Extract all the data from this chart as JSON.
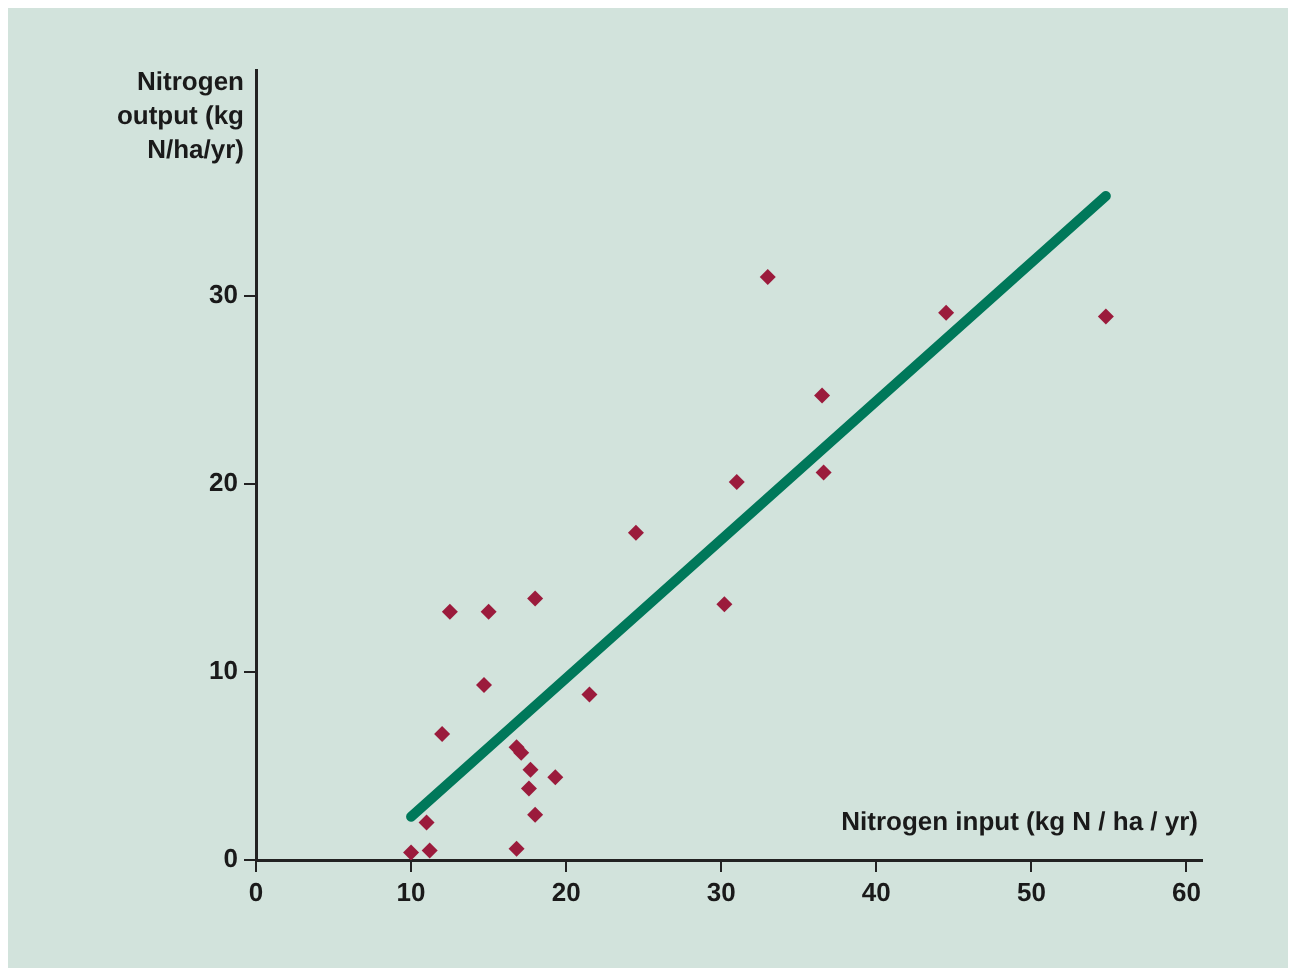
{
  "chart_data": {
    "type": "scatter",
    "xlabel": "Nitrogen input (kg N / ha / yr)",
    "ylabel": "Nitrogen output (kg N/ha/yr)",
    "xlim": [
      0,
      61
    ],
    "xticks": [
      0,
      10,
      20,
      30,
      40,
      50,
      60
    ],
    "ylim": [
      0,
      42
    ],
    "yticks": [
      0,
      10,
      20,
      30
    ],
    "grid": false,
    "legend": false,
    "series": [
      {
        "marker": "diamond",
        "color": "#9b1b3c",
        "x": [
          10,
          11,
          11.2,
          12,
          12.5,
          15,
          14.7,
          18,
          16.8,
          17.1,
          17.7,
          17.6,
          18,
          16.8,
          19.3,
          21.5,
          24.5,
          30.2,
          31,
          33,
          36.5,
          36.6,
          44.5,
          54.8
        ],
        "values": [
          0.4,
          2,
          0.5,
          6.7,
          13.2,
          13.2,
          9.3,
          13.9,
          6,
          5.7,
          4.8,
          3.8,
          2.4,
          0.6,
          4.4,
          8.8,
          17.4,
          13.6,
          20.1,
          31,
          24.7,
          20.6,
          29.1,
          28.9
        ]
      },
      {
        "type": "line",
        "marker": "none",
        "line_style": "solid",
        "color": "#00785a",
        "x": [
          10,
          54.8
        ],
        "values": [
          2.3,
          35.3
        ]
      }
    ]
  }
}
